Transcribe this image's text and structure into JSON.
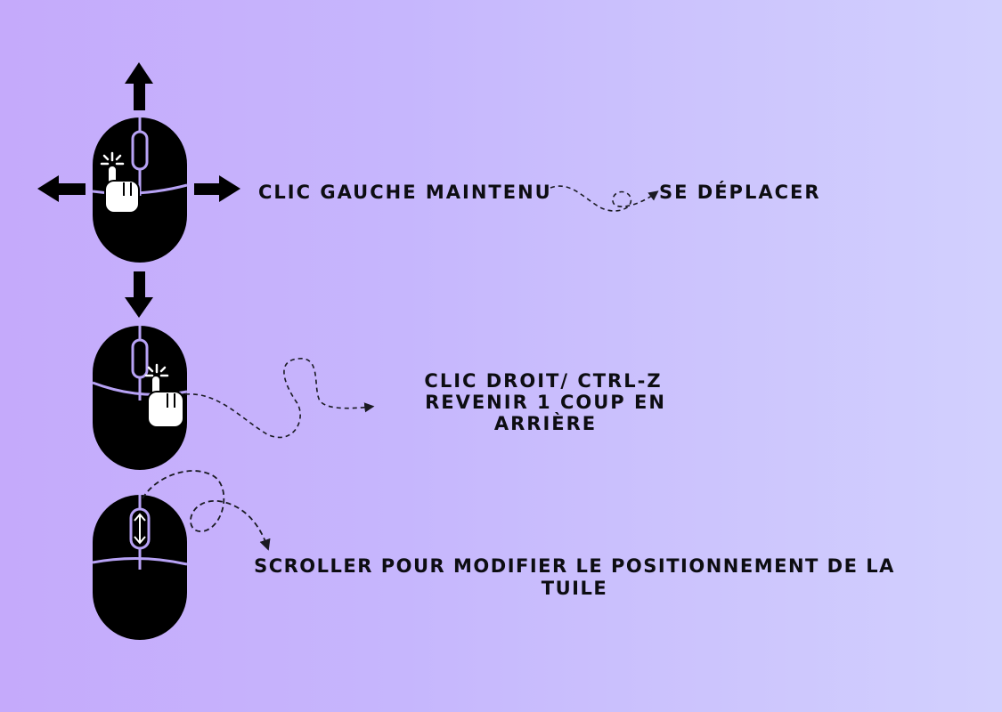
{
  "colors": {
    "background_left": "#c5aafb",
    "background_right": "#d2d0fe",
    "mouse": "#000000",
    "mouse_lines": "#b7a2f5",
    "text": "#0d0d12"
  },
  "row1": {
    "icon": "mouse-left-click-move-icon",
    "action": "Clic gauche maintenu",
    "result": "Se déplacer"
  },
  "row2": {
    "icon": "mouse-right-click-icon",
    "action": "Clic droit/ Ctrl-Z",
    "result": "Revenir 1 coup en arrière"
  },
  "row3": {
    "icon": "mouse-scroll-icon",
    "line1": "Scroller pour modifier le positionnement de la",
    "line2": "tuile"
  }
}
